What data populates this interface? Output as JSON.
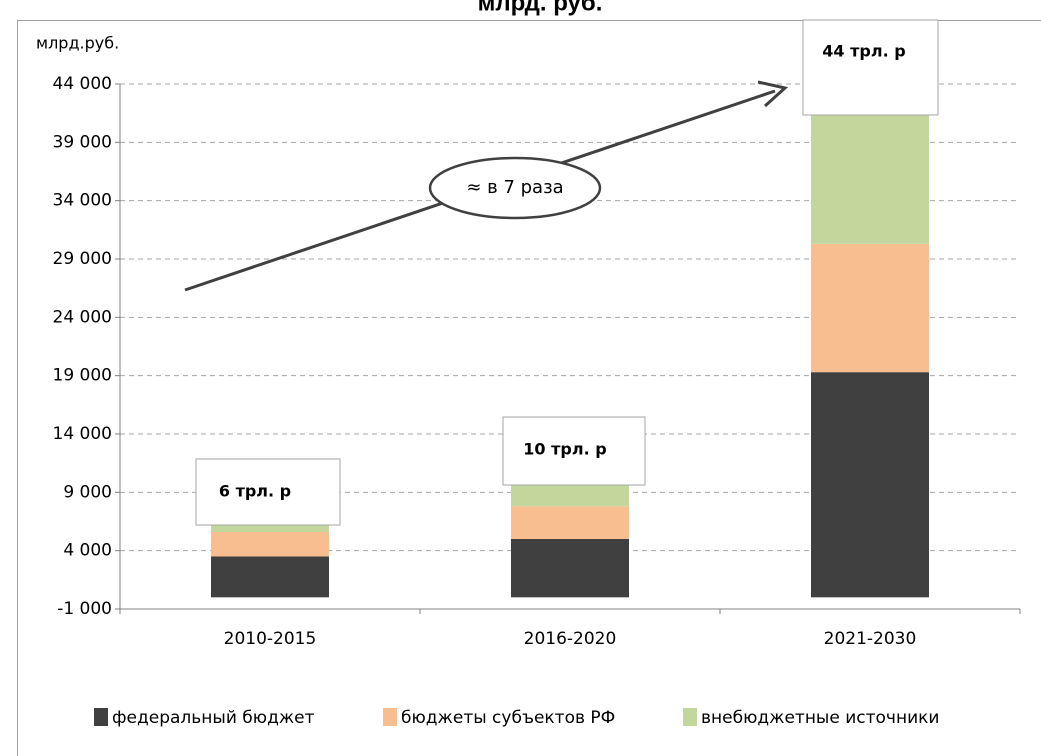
{
  "chart_data": {
    "type": "stacked_bar",
    "title": "млрд. руб.",
    "ylabel": "млрд.руб.",
    "categories": [
      "2010-2015",
      "2016-2020",
      "2021-2030"
    ],
    "series": [
      {
        "name": "федеральный бюджет",
        "color": "#404040",
        "values": [
          3500,
          5000,
          19300
        ]
      },
      {
        "name": "бюджеты субъектов РФ",
        "color": "#f9be8f",
        "values": [
          2100,
          2800,
          11000
        ]
      },
      {
        "name": "внебюджетные источники",
        "color": "#c3d69b",
        "values": [
          600,
          1800,
          13700
        ]
      }
    ],
    "ylim": [
      -1000,
      44000
    ],
    "yticks": [
      {
        "value": -1000,
        "label": "-1 000"
      },
      {
        "value": 4000,
        "label": "4 000"
      },
      {
        "value": 9000,
        "label": "9 000"
      },
      {
        "value": 14000,
        "label": "14 000"
      },
      {
        "value": 19000,
        "label": "19 000"
      },
      {
        "value": 24000,
        "label": "24 000"
      },
      {
        "value": 29000,
        "label": "29 000"
      },
      {
        "value": 34000,
        "label": "34 000"
      },
      {
        "value": 39000,
        "label": "39 000"
      },
      {
        "value": 44000,
        "label": "44 000"
      }
    ],
    "grid": true,
    "legend": "bottom",
    "annotations": [
      "6 трл. р",
      "10 трл. р",
      "44 трл. р",
      "≈ в 7 раза"
    ]
  }
}
